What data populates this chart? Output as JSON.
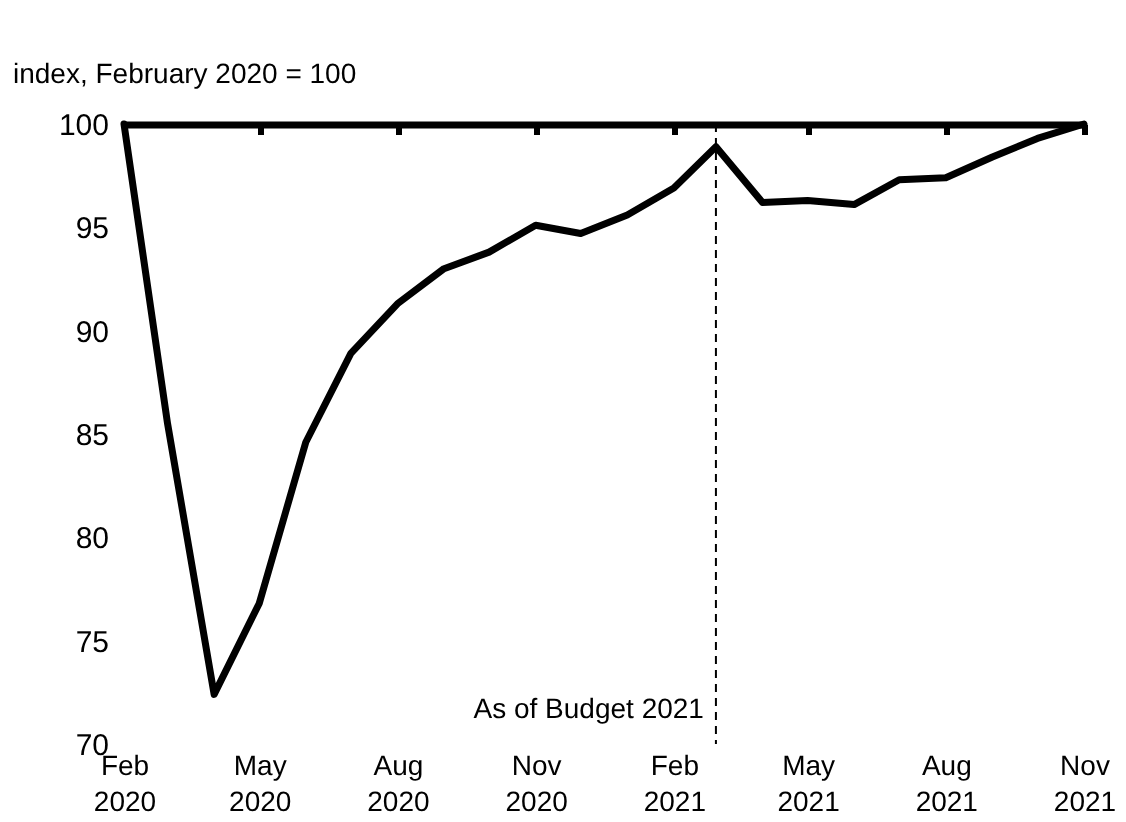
{
  "chart_data": {
    "type": "line",
    "ylabel": "index, February 2020 = 100",
    "x": [
      "2020-02",
      "2020-03",
      "2020-04",
      "2020-05",
      "2020-06",
      "2020-07",
      "2020-08",
      "2020-09",
      "2020-10",
      "2020-11",
      "2020-12",
      "2021-01",
      "2021-02",
      "2021-03",
      "2021-04",
      "2021-05",
      "2021-06",
      "2021-07",
      "2021-08",
      "2021-09",
      "2021-10",
      "2021-11"
    ],
    "series": [
      {
        "color": "#000000",
        "values": [
          100,
          85.5,
          72.4,
          76.8,
          84.6,
          88.9,
          91.3,
          93.0,
          93.8,
          95.1,
          94.7,
          95.6,
          96.9,
          98.9,
          96.2,
          96.3,
          96.1,
          97.3,
          97.4,
          98.4,
          99.3,
          100
        ]
      }
    ],
    "xlim": [
      "2020-02",
      "2021-11"
    ],
    "xticks": [
      {
        "value": "2020-02",
        "label": "Feb 2020"
      },
      {
        "value": "2020-05",
        "label": "May 2020"
      },
      {
        "value": "2020-08",
        "label": "Aug 2020"
      },
      {
        "value": "2020-11",
        "label": "Nov 2020"
      },
      {
        "value": "2021-02",
        "label": "Feb 2021"
      },
      {
        "value": "2021-05",
        "label": "May 2021"
      },
      {
        "value": "2021-08",
        "label": "Aug 2021"
      },
      {
        "value": "2021-11",
        "label": "Nov 2021"
      }
    ],
    "ylim": [
      70,
      100
    ],
    "yticks": [
      70,
      75,
      80,
      85,
      90,
      95,
      100
    ],
    "ref_lines": [
      {
        "axis": "x",
        "value": "2021-03",
        "label": "As of Budget 2021",
        "color": "#000000",
        "line_style": "dashed"
      }
    ],
    "grid": false,
    "marker": "none",
    "line_style": "solid"
  }
}
